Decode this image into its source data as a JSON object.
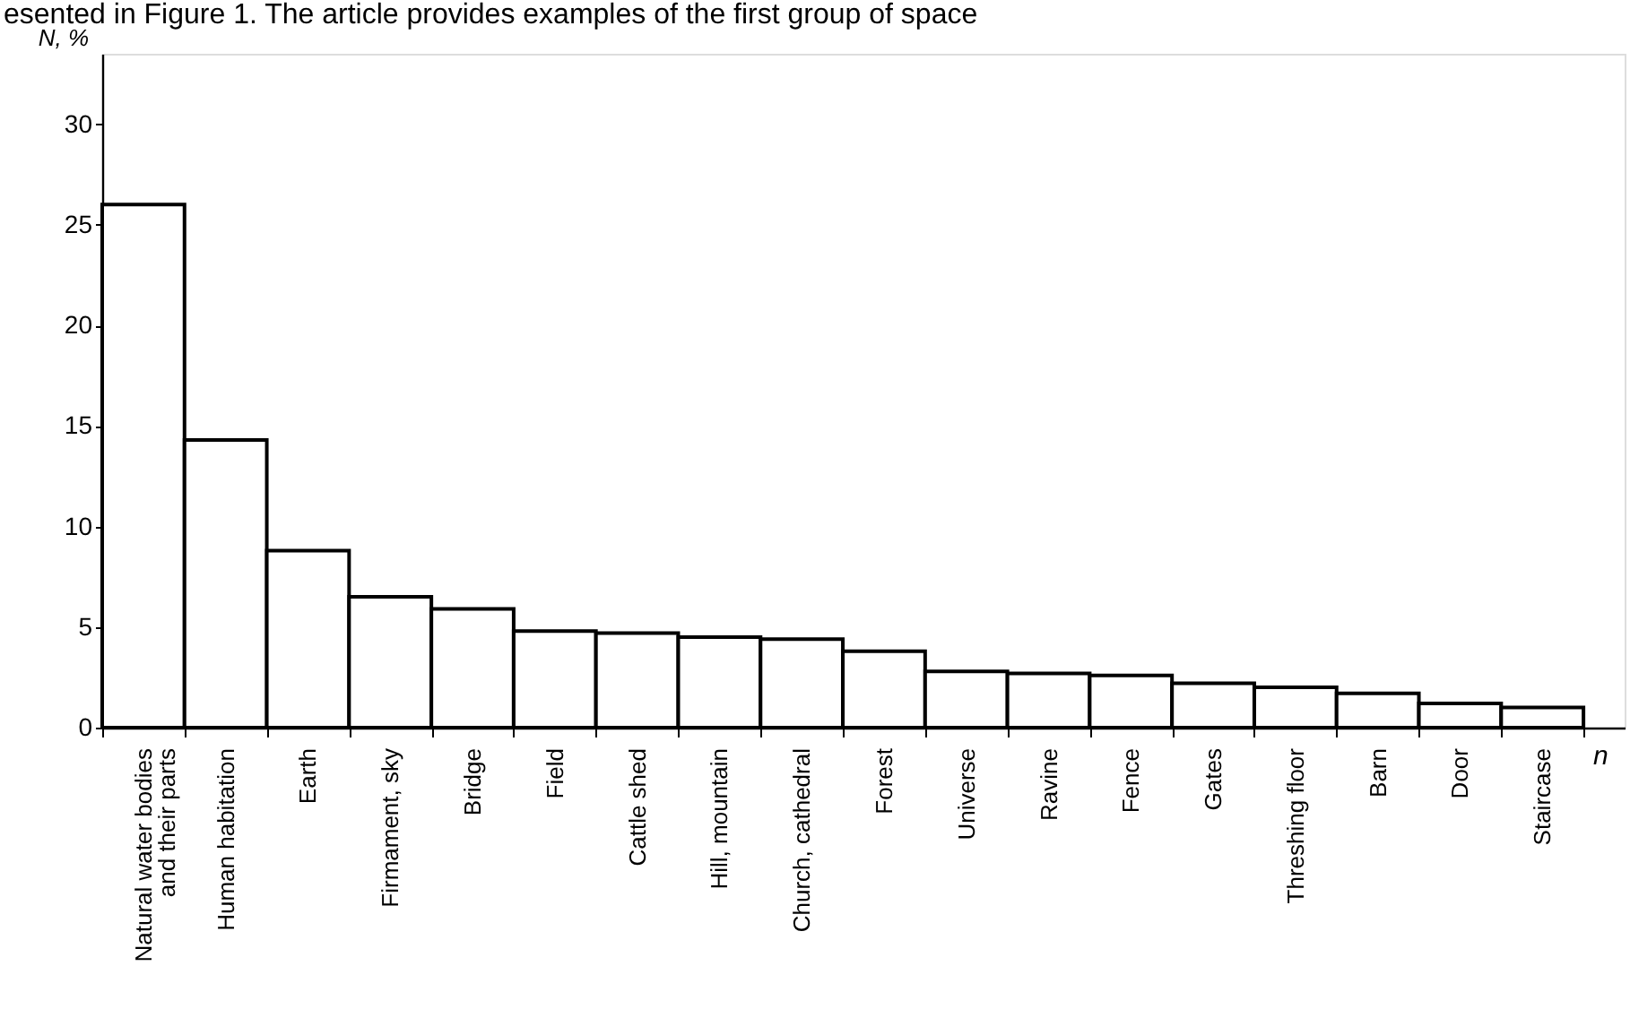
{
  "chart_data": {
    "type": "bar",
    "annotations": [
      "esented in Figure 1. The article provides examples of the first group of space"
    ],
    "xlabel": "n",
    "ylabel": "N, %",
    "categories": [
      "Natural water bodies\n and their parts",
      "Human habitation",
      "Earth",
      "Firmament, sky",
      "Bridge",
      "Field",
      "Cattle shed",
      "Hill, mountain",
      "Church, cathedral",
      "Forest",
      "Universe",
      "Ravine",
      "Fence",
      "Gates",
      "Threshing  floor",
      "Barn",
      "Door",
      "Staircase"
    ],
    "values": [
      26.0,
      14.3,
      8.8,
      6.5,
      5.9,
      4.8,
      4.7,
      4.5,
      4.4,
      3.8,
      2.8,
      2.7,
      2.6,
      2.2,
      2.0,
      1.7,
      1.2,
      1.0
    ],
    "color": "#ffffff",
    "ylim": [
      0,
      33.5
    ],
    "yticks": [
      0,
      5,
      10,
      15,
      20,
      25,
      30
    ]
  }
}
